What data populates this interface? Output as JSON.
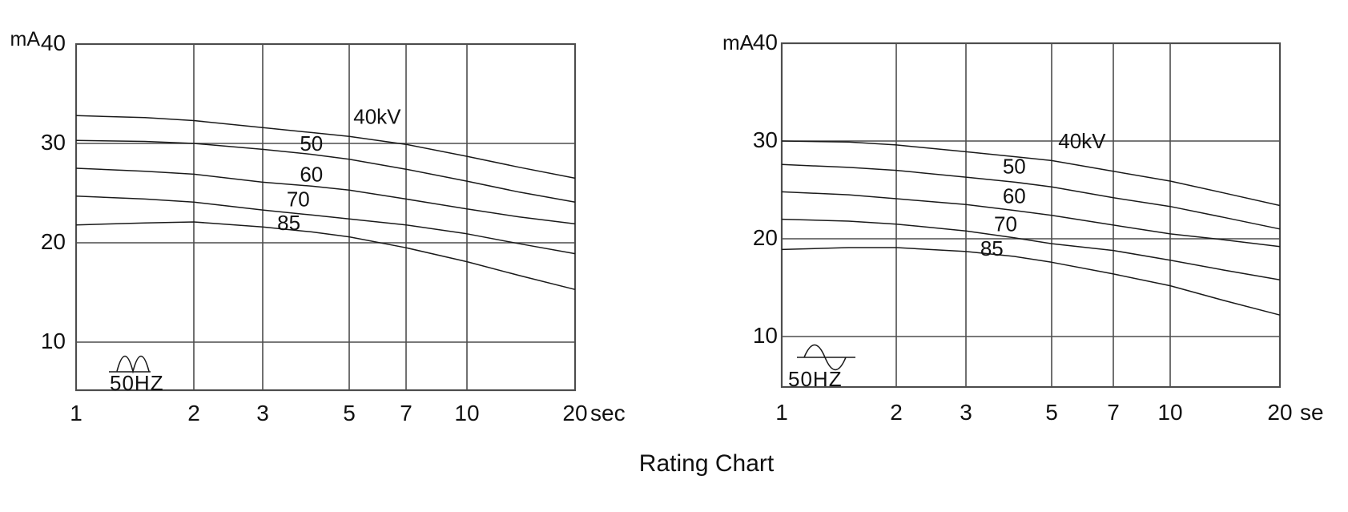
{
  "title": "Rating Chart",
  "chart_data": [
    {
      "type": "line",
      "name": "left-rating-chart",
      "x_scale": "log",
      "x_unit_label": "sec",
      "y_axis_label": "mA",
      "x_ticks": [
        1,
        2,
        3,
        5,
        7,
        10,
        20
      ],
      "y_ticks": [
        40,
        30,
        20,
        10
      ],
      "xlim": [
        1,
        20
      ],
      "ylim": [
        5,
        40
      ],
      "grid": true,
      "legend_position": "on-curve",
      "power_supply": {
        "freq_label": "50HZ",
        "waveform": "full-wave-rectified"
      },
      "x": [
        1,
        1.5,
        2,
        3,
        4,
        5,
        7,
        10,
        14,
        20
      ],
      "series": [
        {
          "name": "40kV",
          "values": [
            32.8,
            32.6,
            32.3,
            31.6,
            31.1,
            30.7,
            29.9,
            28.7,
            27.6,
            26.5
          ],
          "label_at": {
            "t": 5.9,
            "mA": 32.7
          }
        },
        {
          "name": "50",
          "values": [
            30.3,
            30.2,
            30.0,
            29.4,
            28.9,
            28.4,
            27.4,
            26.2,
            25.1,
            24.1
          ],
          "label_at": {
            "t": 4.0,
            "mA": 30.0
          }
        },
        {
          "name": "60",
          "values": [
            27.5,
            27.2,
            26.9,
            26.1,
            25.7,
            25.3,
            24.4,
            23.4,
            22.6,
            21.9
          ],
          "label_at": {
            "t": 4.0,
            "mA": 26.9
          }
        },
        {
          "name": "70",
          "values": [
            24.7,
            24.4,
            24.1,
            23.3,
            22.8,
            22.4,
            21.8,
            20.9,
            19.9,
            18.9
          ],
          "label_at": {
            "t": 3.7,
            "mA": 24.4
          }
        },
        {
          "name": "85",
          "values": [
            21.8,
            22.0,
            22.1,
            21.6,
            21.1,
            20.6,
            19.5,
            18.1,
            16.7,
            15.3
          ],
          "label_at": {
            "t": 3.5,
            "mA": 22.0
          }
        }
      ]
    },
    {
      "type": "line",
      "name": "right-rating-chart",
      "x_scale": "log",
      "x_unit_label": "se",
      "y_axis_label": "mA",
      "x_ticks": [
        1,
        2,
        3,
        5,
        7,
        10,
        20
      ],
      "y_ticks": [
        40,
        30,
        20,
        10
      ],
      "xlim": [
        1,
        20
      ],
      "ylim": [
        5,
        40
      ],
      "grid": true,
      "legend_position": "on-curve",
      "power_supply": {
        "freq_label": "50HZ",
        "waveform": "sine"
      },
      "x": [
        1,
        1.5,
        2,
        3,
        4,
        5,
        7,
        10,
        14,
        20
      ],
      "series": [
        {
          "name": "40kV",
          "values": [
            30.0,
            29.9,
            29.6,
            28.9,
            28.4,
            28.0,
            26.9,
            25.9,
            24.7,
            23.4
          ],
          "label_at": {
            "t": 5.9,
            "mA": 30.0
          }
        },
        {
          "name": "50",
          "values": [
            27.6,
            27.3,
            27.0,
            26.3,
            25.8,
            25.3,
            24.2,
            23.3,
            22.2,
            21.0
          ],
          "label_at": {
            "t": 4.0,
            "mA": 27.4
          }
        },
        {
          "name": "60",
          "values": [
            24.8,
            24.5,
            24.1,
            23.5,
            22.9,
            22.4,
            21.4,
            20.5,
            19.9,
            19.2
          ],
          "label_at": {
            "t": 4.0,
            "mA": 24.4
          }
        },
        {
          "name": "70",
          "values": [
            22.0,
            21.8,
            21.5,
            20.8,
            20.1,
            19.5,
            18.8,
            17.8,
            16.8,
            15.8
          ],
          "label_at": {
            "t": 3.8,
            "mA": 21.5
          }
        },
        {
          "name": "85",
          "values": [
            18.9,
            19.1,
            19.1,
            18.7,
            18.2,
            17.6,
            16.4,
            15.2,
            13.7,
            12.2
          ],
          "label_at": {
            "t": 3.5,
            "mA": 19.0
          }
        }
      ]
    }
  ]
}
